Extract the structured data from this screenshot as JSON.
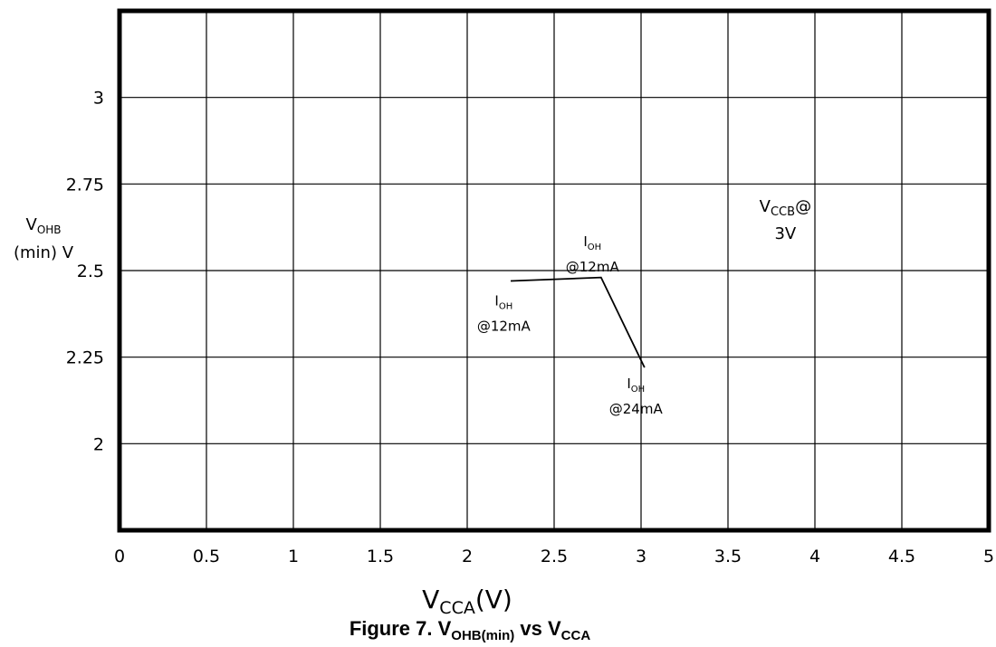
{
  "chart_data": {
    "type": "line",
    "x": [
      2.25,
      2.77,
      3.02
    ],
    "series": [
      {
        "values": [
          2.47,
          2.48,
          2.22
        ]
      }
    ],
    "xlim": [
      0,
      5
    ],
    "ylim": [
      1.75,
      3.25
    ],
    "xticks": [
      0,
      0.5,
      1,
      1.5,
      2,
      2.5,
      3,
      3.5,
      4,
      4.5,
      5
    ],
    "xtick_labels": [
      "0",
      "0.5",
      "1",
      "1.5",
      "2",
      "2.5",
      "3",
      "3.5",
      "4",
      "4.5",
      "5"
    ],
    "yticks": [
      2,
      2.25,
      2.5,
      2.75,
      3
    ],
    "ytick_labels": [
      "2",
      "2.25",
      "2.5",
      "2.75",
      "3"
    ],
    "grid": true,
    "xlabel": {
      "main": "V",
      "sub": "CCA",
      "suffix": "(V)"
    },
    "ylabel": {
      "main": "V",
      "sub": "OHB",
      "line2": "(min) V"
    },
    "title": {
      "prefix": "Figure 7. V",
      "sub1": "OHB(min)",
      "mid": " vs V",
      "sub2": "CCA"
    },
    "annotations": [
      {
        "id": "ann-vccb",
        "main": "V",
        "sub": "CCB",
        "suffix": "@",
        "line2": "3V",
        "x": 3.83,
        "y": 2.67
      },
      {
        "id": "ann-ioh-12ma-upper",
        "main": "I",
        "sub": "OH",
        "line2": "@12mA",
        "x": 2.72,
        "y": 2.57
      },
      {
        "id": "ann-ioh-12ma-lower",
        "main": "I",
        "sub": "OH",
        "line2": "@12mA",
        "x": 2.21,
        "y": 2.4
      },
      {
        "id": "ann-ioh-24ma",
        "main": "I",
        "sub": "OH",
        "line2": "@24mA",
        "x": 2.97,
        "y": 2.16
      }
    ]
  }
}
